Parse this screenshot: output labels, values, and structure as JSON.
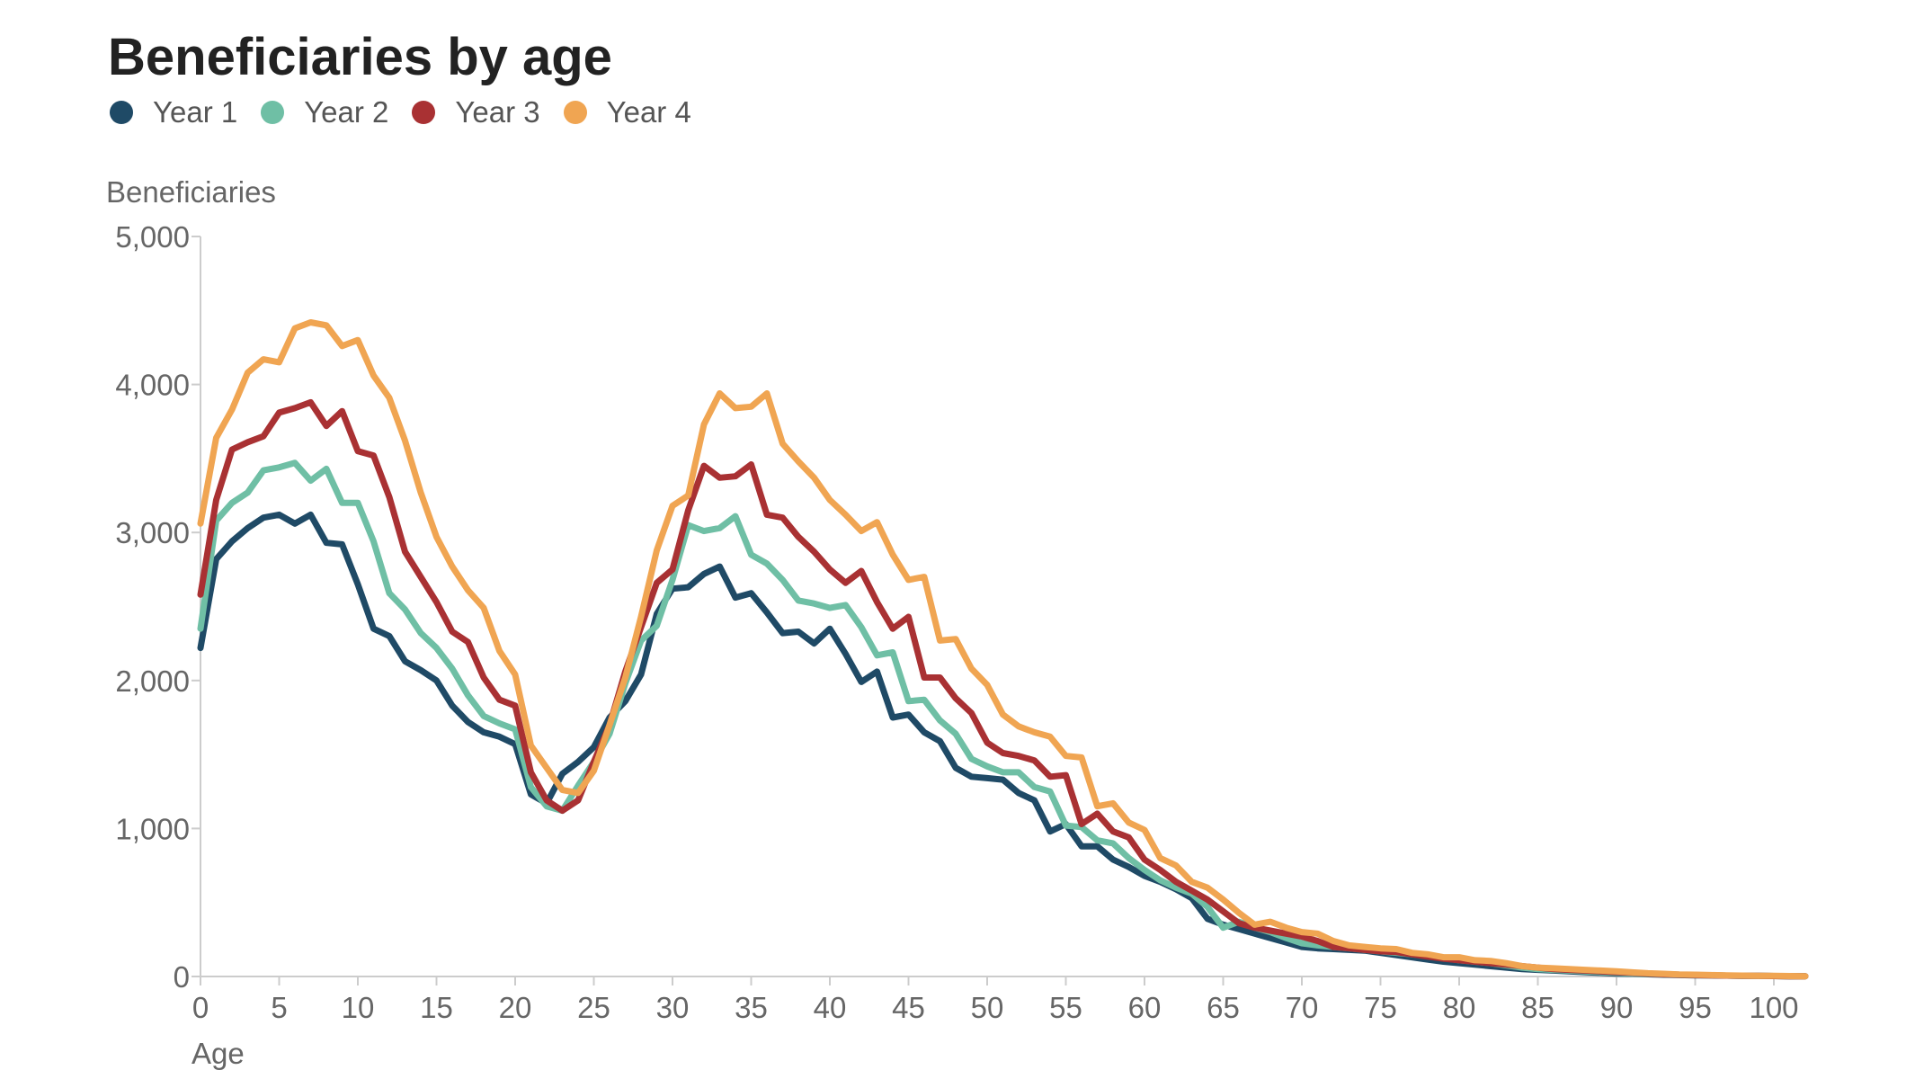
{
  "chart_data": {
    "type": "line",
    "title": "Beneficiaries by age",
    "xlabel": "Age",
    "ylabel": "Beneficiaries",
    "xlim": [
      0,
      102
    ],
    "ylim": [
      0,
      5000
    ],
    "x_ticks": [
      "0",
      "5",
      "10",
      "15",
      "20",
      "25",
      "30",
      "35",
      "40",
      "45",
      "50",
      "55",
      "60",
      "65",
      "70",
      "75",
      "80",
      "85",
      "90",
      "95",
      "100"
    ],
    "y_ticks": [
      "0",
      "1,000",
      "2,000",
      "3,000",
      "4,000",
      "5,000"
    ],
    "legend_position": "top-left",
    "grid": false,
    "x": [
      0,
      1,
      2,
      3,
      4,
      5,
      6,
      7,
      8,
      9,
      10,
      11,
      12,
      13,
      14,
      15,
      16,
      17,
      18,
      19,
      20,
      21,
      22,
      23,
      24,
      25,
      26,
      27,
      28,
      29,
      30,
      31,
      32,
      33,
      34,
      35,
      36,
      37,
      38,
      39,
      40,
      41,
      42,
      43,
      44,
      45,
      46,
      47,
      48,
      49,
      50,
      51,
      52,
      53,
      54,
      55,
      56,
      57,
      58,
      59,
      60,
      61,
      62,
      63,
      64,
      65,
      66,
      67,
      68,
      69,
      70,
      71,
      72,
      73,
      74,
      75,
      76,
      77,
      78,
      79,
      80,
      81,
      82,
      83,
      84,
      85,
      86,
      87,
      88,
      89,
      90,
      91,
      92,
      93,
      94,
      95,
      96,
      97,
      98,
      99,
      100,
      101,
      102
    ],
    "series": [
      {
        "name": "Year 1",
        "color": "#1f4a66",
        "values": [
          2220,
          2820,
          2940,
          3030,
          3100,
          3120,
          3060,
          3120,
          2930,
          2920,
          2650,
          2350,
          2300,
          2130,
          2070,
          2000,
          1830,
          1720,
          1650,
          1620,
          1570,
          1230,
          1170,
          1370,
          1450,
          1550,
          1750,
          1860,
          2040,
          2450,
          2620,
          2630,
          2720,
          2770,
          2560,
          2590,
          2460,
          2320,
          2330,
          2250,
          2350,
          2180,
          1990,
          2060,
          1750,
          1770,
          1650,
          1590,
          1410,
          1350,
          1340,
          1330,
          1240,
          1190,
          980,
          1030,
          880,
          880,
          790,
          740,
          680,
          640,
          590,
          530,
          390,
          350,
          320,
          290,
          260,
          230,
          200,
          190,
          185,
          180,
          175,
          160,
          145,
          130,
          115,
          100,
          90,
          80,
          70,
          60,
          50,
          45,
          40,
          35,
          30,
          25,
          20,
          18,
          15,
          12,
          10,
          8,
          7,
          6,
          5,
          4,
          3,
          2,
          2
        ]
      },
      {
        "name": "Year 2",
        "color": "#6fbfa5",
        "values": [
          2350,
          3080,
          3200,
          3270,
          3420,
          3440,
          3470,
          3350,
          3430,
          3200,
          3200,
          2940,
          2590,
          2480,
          2320,
          2220,
          2080,
          1900,
          1760,
          1710,
          1670,
          1280,
          1150,
          1120,
          1290,
          1450,
          1640,
          1980,
          2270,
          2370,
          2680,
          3050,
          3010,
          3030,
          3110,
          2850,
          2790,
          2680,
          2540,
          2520,
          2490,
          2510,
          2360,
          2170,
          2190,
          1860,
          1870,
          1730,
          1640,
          1470,
          1420,
          1380,
          1380,
          1280,
          1250,
          1020,
          1010,
          920,
          900,
          800,
          720,
          650,
          600,
          560,
          470,
          330,
          370,
          330,
          300,
          260,
          225,
          210,
          200,
          190,
          180,
          170,
          160,
          150,
          140,
          125,
          110,
          100,
          90,
          75,
          60,
          50,
          45,
          40,
          35,
          30,
          25,
          20,
          18,
          15,
          12,
          10,
          8,
          6,
          5,
          4,
          3,
          2,
          2
        ]
      },
      {
        "name": "Year 3",
        "color": "#a93133",
        "values": [
          2580,
          3220,
          3560,
          3610,
          3650,
          3810,
          3840,
          3880,
          3720,
          3820,
          3550,
          3520,
          3240,
          2870,
          2700,
          2530,
          2330,
          2260,
          2020,
          1870,
          1830,
          1380,
          1190,
          1120,
          1190,
          1450,
          1700,
          2060,
          2360,
          2660,
          2750,
          3150,
          3450,
          3370,
          3380,
          3460,
          3120,
          3100,
          2970,
          2870,
          2750,
          2660,
          2740,
          2530,
          2350,
          2430,
          2020,
          2020,
          1880,
          1780,
          1580,
          1510,
          1490,
          1460,
          1350,
          1360,
          1030,
          1100,
          980,
          940,
          790,
          720,
          640,
          580,
          520,
          440,
          360,
          330,
          310,
          290,
          270,
          240,
          200,
          190,
          180,
          170,
          165,
          150,
          135,
          120,
          110,
          100,
          90,
          80,
          70,
          60,
          50,
          45,
          40,
          35,
          30,
          25,
          20,
          15,
          12,
          10,
          8,
          6,
          5,
          4,
          3,
          2,
          2
        ]
      },
      {
        "name": "Year 4",
        "color": "#f0a552",
        "values": [
          3060,
          3640,
          3830,
          4080,
          4170,
          4150,
          4380,
          4420,
          4400,
          4260,
          4300,
          4060,
          3910,
          3620,
          3270,
          2970,
          2770,
          2610,
          2490,
          2200,
          2040,
          1560,
          1410,
          1260,
          1240,
          1390,
          1700,
          2020,
          2430,
          2880,
          3180,
          3250,
          3730,
          3940,
          3840,
          3850,
          3940,
          3600,
          3480,
          3370,
          3220,
          3120,
          3010,
          3070,
          2850,
          2680,
          2700,
          2270,
          2280,
          2080,
          1970,
          1770,
          1690,
          1650,
          1620,
          1490,
          1480,
          1150,
          1170,
          1040,
          990,
          800,
          750,
          640,
          600,
          520,
          430,
          350,
          370,
          330,
          300,
          290,
          240,
          210,
          200,
          190,
          185,
          160,
          150,
          130,
          130,
          110,
          105,
          90,
          70,
          60,
          55,
          50,
          45,
          40,
          35,
          28,
          22,
          18,
          14,
          12,
          10,
          8,
          6,
          5,
          4,
          3,
          2
        ]
      }
    ]
  }
}
